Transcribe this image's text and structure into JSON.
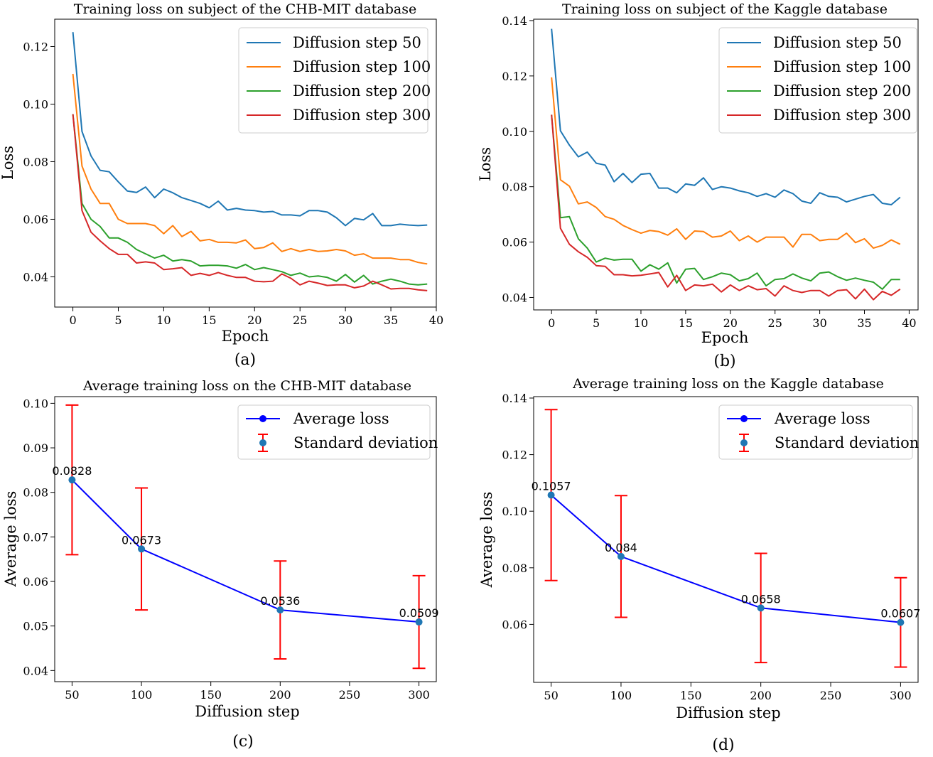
{
  "colors": {
    "series": [
      "#1f77b4",
      "#ff7f0e",
      "#2ca02c",
      "#d62728"
    ],
    "avg_line": "#0000ff",
    "avg_marker": "#1f77b4",
    "errorbar": "#ff0000"
  },
  "chart_data": [
    {
      "id": "a",
      "type": "line",
      "caption": "(a)",
      "title": "Training loss on subject of the CHB-MIT database",
      "xlabel": "Epoch",
      "ylabel": "Loss",
      "xlim": [
        -2,
        40
      ],
      "ylim": [
        0.0295,
        0.1295
      ],
      "xticks": [
        0,
        5,
        10,
        15,
        20,
        25,
        30,
        35,
        40
      ],
      "xtick_labels": [
        "0",
        "5",
        "10",
        "15",
        "20",
        "25",
        "30",
        "35",
        "40"
      ],
      "yticks": [
        0.04,
        0.06,
        0.08,
        0.1,
        0.12
      ],
      "ytick_labels": [
        "0.04",
        "0.06",
        "0.08",
        "0.10",
        "0.12"
      ],
      "legend_position": "top-right",
      "series": [
        {
          "name": "Diffusion step 50",
          "values": [
            0.125,
            0.0905,
            0.082,
            0.077,
            0.0765,
            0.073,
            0.0698,
            0.0693,
            0.0712,
            0.0675,
            0.0705,
            0.0692,
            0.0675,
            0.0665,
            0.0655,
            0.064,
            0.0663,
            0.0632,
            0.0638,
            0.0632,
            0.063,
            0.0625,
            0.0627,
            0.0615,
            0.0615,
            0.0612,
            0.063,
            0.063,
            0.0625,
            0.0605,
            0.0578,
            0.0603,
            0.0598,
            0.062,
            0.0578,
            0.0578,
            0.0583,
            0.058,
            0.0578,
            0.058
          ]
        },
        {
          "name": "Diffusion step 100",
          "values": [
            0.1105,
            0.0785,
            0.0705,
            0.0655,
            0.0655,
            0.06,
            0.0585,
            0.0585,
            0.0585,
            0.0578,
            0.055,
            0.0578,
            0.054,
            0.0558,
            0.0525,
            0.053,
            0.052,
            0.052,
            0.0518,
            0.0528,
            0.0498,
            0.0502,
            0.0518,
            0.0488,
            0.0498,
            0.0488,
            0.0495,
            0.0488,
            0.049,
            0.0495,
            0.049,
            0.0475,
            0.048,
            0.0465,
            0.0465,
            0.0465,
            0.046,
            0.046,
            0.045,
            0.0445
          ]
        },
        {
          "name": "Diffusion step 200",
          "values": [
            0.0965,
            0.0655,
            0.06,
            0.0575,
            0.0535,
            0.0535,
            0.052,
            0.0495,
            0.048,
            0.0465,
            0.0475,
            0.0455,
            0.046,
            0.0455,
            0.0438,
            0.044,
            0.044,
            0.0438,
            0.043,
            0.0443,
            0.0425,
            0.0432,
            0.0425,
            0.0418,
            0.0405,
            0.0413,
            0.04,
            0.0403,
            0.0398,
            0.0385,
            0.0408,
            0.0382,
            0.0405,
            0.0375,
            0.0385,
            0.0392,
            0.0385,
            0.0375,
            0.0372,
            0.0375
          ]
        },
        {
          "name": "Diffusion step 300",
          "values": [
            0.0965,
            0.063,
            0.0555,
            0.0525,
            0.0498,
            0.0478,
            0.0478,
            0.0448,
            0.0452,
            0.0448,
            0.0425,
            0.0428,
            0.0432,
            0.0405,
            0.0412,
            0.0405,
            0.0415,
            0.0405,
            0.0398,
            0.0398,
            0.0385,
            0.0383,
            0.0385,
            0.041,
            0.0395,
            0.0372,
            0.0385,
            0.0378,
            0.037,
            0.0372,
            0.0372,
            0.0362,
            0.0368,
            0.0385,
            0.0372,
            0.0358,
            0.036,
            0.036,
            0.0355,
            0.0352
          ]
        }
      ]
    },
    {
      "id": "b",
      "type": "line",
      "caption": "(b)",
      "title": "Training loss on subject of the Kaggle database",
      "xlabel": "Epoch",
      "ylabel": "Loss",
      "xlim": [
        -2,
        41
      ],
      "ylim": [
        0.0355,
        0.1405
      ],
      "xticks": [
        0,
        5,
        10,
        15,
        20,
        25,
        30,
        35,
        40
      ],
      "xtick_labels": [
        "0",
        "5",
        "10",
        "15",
        "20",
        "25",
        "30",
        "35",
        "40"
      ],
      "yticks": [
        0.04,
        0.06,
        0.08,
        0.1,
        0.12,
        0.14
      ],
      "ytick_labels": [
        "0.04",
        "0.06",
        "0.08",
        "0.10",
        "0.12",
        "0.14"
      ],
      "legend_position": "top-right",
      "series": [
        {
          "name": "Diffusion step 50",
          "values": [
            0.137,
            0.1002,
            0.095,
            0.0908,
            0.0925,
            0.0885,
            0.0878,
            0.0818,
            0.0848,
            0.0815,
            0.0845,
            0.0848,
            0.0795,
            0.0795,
            0.0778,
            0.081,
            0.0805,
            0.0832,
            0.079,
            0.08,
            0.0795,
            0.0785,
            0.0778,
            0.0765,
            0.0775,
            0.0762,
            0.0788,
            0.0775,
            0.0748,
            0.074,
            0.0778,
            0.0765,
            0.0762,
            0.0745,
            0.0755,
            0.0765,
            0.0772,
            0.074,
            0.0735,
            0.0762
          ]
        },
        {
          "name": "Diffusion step 100",
          "values": [
            0.1195,
            0.0825,
            0.0802,
            0.0738,
            0.0745,
            0.0725,
            0.0692,
            0.0682,
            0.066,
            0.0645,
            0.0632,
            0.0642,
            0.0638,
            0.0625,
            0.0648,
            0.061,
            0.064,
            0.0638,
            0.0618,
            0.0622,
            0.064,
            0.0605,
            0.0622,
            0.06,
            0.0618,
            0.0618,
            0.0618,
            0.0582,
            0.0628,
            0.0628,
            0.0605,
            0.061,
            0.061,
            0.0632,
            0.0598,
            0.0612,
            0.0578,
            0.0588,
            0.0608,
            0.0592
          ]
        },
        {
          "name": "Diffusion step 200",
          "values": [
            0.106,
            0.0688,
            0.0692,
            0.0612,
            0.0578,
            0.0528,
            0.0542,
            0.0535,
            0.0538,
            0.0538,
            0.0495,
            0.0518,
            0.0502,
            0.0525,
            0.0452,
            0.0502,
            0.0505,
            0.0465,
            0.0475,
            0.0488,
            0.0482,
            0.046,
            0.0468,
            0.0488,
            0.0442,
            0.0465,
            0.0468,
            0.0485,
            0.047,
            0.046,
            0.0488,
            0.0492,
            0.0475,
            0.0462,
            0.047,
            0.0462,
            0.0455,
            0.043,
            0.0465,
            0.0465
          ]
        },
        {
          "name": "Diffusion step 300",
          "values": [
            0.106,
            0.065,
            0.0592,
            0.0565,
            0.0545,
            0.0515,
            0.0512,
            0.0482,
            0.0482,
            0.0478,
            0.048,
            0.0485,
            0.049,
            0.0438,
            0.048,
            0.0425,
            0.0445,
            0.0442,
            0.0448,
            0.042,
            0.0445,
            0.0425,
            0.0442,
            0.0428,
            0.0432,
            0.0405,
            0.0442,
            0.0425,
            0.0418,
            0.0425,
            0.0425,
            0.0405,
            0.0425,
            0.0428,
            0.0395,
            0.043,
            0.0392,
            0.0422,
            0.0408,
            0.043
          ]
        }
      ]
    },
    {
      "id": "c",
      "type": "line",
      "caption": "(c)",
      "title": "Average training loss on the CHB-MIT database",
      "xlabel": "Diffusion step",
      "ylabel": "Average loss",
      "xlim": [
        37.5,
        312.5
      ],
      "ylim": [
        0.0375,
        0.1015
      ],
      "xticks": [
        50,
        100,
        150,
        200,
        250,
        300
      ],
      "xtick_labels": [
        "50",
        "100",
        "150",
        "200",
        "250",
        "300"
      ],
      "yticks": [
        0.04,
        0.05,
        0.06,
        0.07,
        0.08,
        0.09,
        0.1
      ],
      "ytick_labels": [
        "0.04",
        "0.05",
        "0.06",
        "0.07",
        "0.08",
        "0.09",
        "0.10"
      ],
      "legend_position": "top-right",
      "legend": [
        "Average loss",
        "Standard deviation"
      ],
      "x": [
        50,
        100,
        200,
        300
      ],
      "values": [
        0.0828,
        0.0673,
        0.0536,
        0.0509
      ],
      "data_labels": [
        "0.0828",
        "0.0673",
        "0.0536",
        "0.0509"
      ],
      "std": [
        0.0168,
        0.0137,
        0.011,
        0.0104
      ]
    },
    {
      "id": "d",
      "type": "line",
      "caption": "(d)",
      "title": "Average training loss on the Kaggle database",
      "xlabel": "Diffusion step",
      "ylabel": "Average loss",
      "xlim": [
        37.5,
        312.5
      ],
      "ylim": [
        0.0395,
        0.1405
      ],
      "xticks": [
        50,
        100,
        150,
        200,
        250,
        300
      ],
      "xtick_labels": [
        "50",
        "100",
        "150",
        "200",
        "250",
        "300"
      ],
      "yticks": [
        0.06,
        0.08,
        0.1,
        0.12,
        0.14
      ],
      "ytick_labels": [
        "0.06",
        "0.08",
        "0.10",
        "0.12",
        "0.14"
      ],
      "legend_position": "top-right",
      "legend": [
        "Average loss",
        "Standard deviation"
      ],
      "x": [
        50,
        100,
        200,
        300
      ],
      "values": [
        0.1057,
        0.084,
        0.0658,
        0.0607
      ],
      "data_labels": [
        "0.1057",
        "0.084",
        "0.0658",
        "0.0607"
      ],
      "std": [
        0.0302,
        0.0215,
        0.0193,
        0.0158
      ]
    }
  ]
}
